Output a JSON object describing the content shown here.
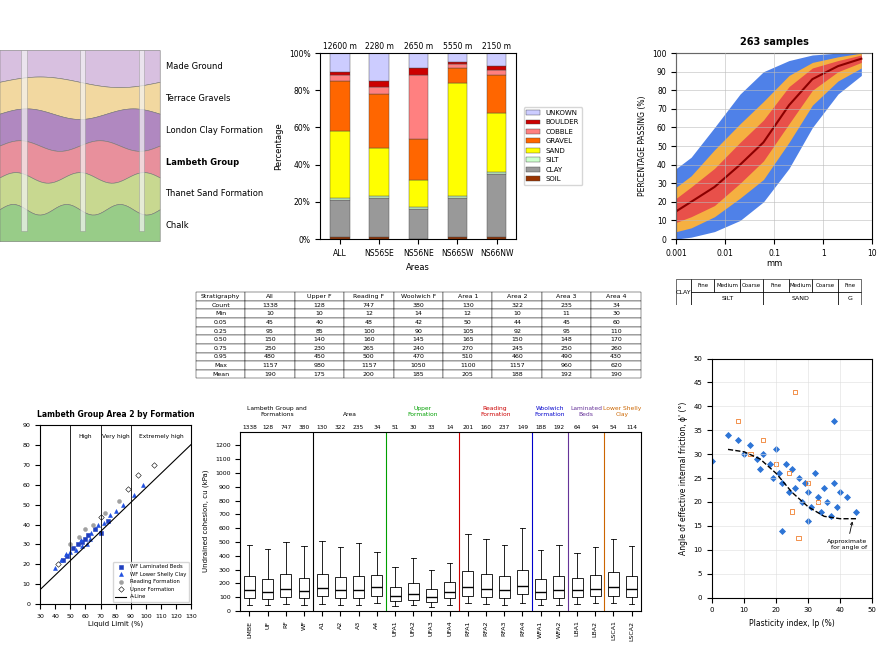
{
  "diagram": {
    "layers": [
      {
        "label": "Made Ground",
        "color": "#d8c0e0",
        "weight": "normal"
      },
      {
        "label": "Terrace Gravels",
        "color": "#f2d8a0",
        "weight": "normal"
      },
      {
        "label": "London Clay Formation",
        "color": "#b088c0",
        "weight": "normal"
      },
      {
        "label": "Lambeth Group",
        "color": "#e8909c",
        "weight": "bold"
      },
      {
        "label": "Thanet Sand Formation",
        "color": "#c8d890",
        "weight": "normal"
      },
      {
        "label": "Chalk",
        "color": "#98cc88",
        "weight": "normal"
      }
    ]
  },
  "chart_data": [
    {
      "type": "bar",
      "stacked": true,
      "x_label": "Areas",
      "y_label": "Percentage",
      "categories": [
        "ALL",
        "NS56SE",
        "NS56NE",
        "NS66SW",
        "NS66NW"
      ],
      "lengths": [
        "12600 m",
        "2280 m",
        "2650 m",
        "5550 m",
        "2150 m"
      ],
      "ylim": [
        0,
        100
      ],
      "yticks": [
        {
          "value": 0,
          "label": "0%"
        },
        {
          "value": 20,
          "label": "20%"
        },
        {
          "value": 40,
          "label": "40%"
        },
        {
          "value": 60,
          "label": "60%"
        },
        {
          "value": 80,
          "label": "80%"
        },
        {
          "value": 100,
          "label": "100%"
        }
      ],
      "legend": "center left",
      "series": [
        {
          "name": "SOIL",
          "color": "#993300",
          "values": [
            1,
            1,
            0,
            1,
            1
          ]
        },
        {
          "name": "CLAY",
          "color": "#999999",
          "values": [
            20,
            21,
            16,
            21,
            34
          ]
        },
        {
          "name": "SILT",
          "color": "#ccffcc",
          "values": [
            1,
            1,
            1,
            1,
            1
          ]
        },
        {
          "name": "SAND",
          "color": "#ffff00",
          "values": [
            36,
            26,
            15,
            61,
            32
          ]
        },
        {
          "name": "GRAVEL",
          "color": "#ff6600",
          "values": [
            27,
            29,
            22,
            8,
            20
          ]
        },
        {
          "name": "COBBLE",
          "color": "#ff8080",
          "values": [
            3,
            4,
            34,
            2,
            3
          ]
        },
        {
          "name": "BOULDER",
          "color": "#cc0000",
          "values": [
            2,
            3,
            4,
            1,
            2
          ]
        },
        {
          "name": "UNKOWN",
          "color": "#ccccff",
          "values": [
            10,
            15,
            8,
            5,
            7
          ]
        }
      ]
    },
    {
      "type": "line",
      "title": "263 samples",
      "x_label": "mm",
      "y_label": "PERCENTAGE PASSING (%)",
      "log": "x",
      "grid": true,
      "x": [
        0.001,
        0.002,
        0.006,
        0.02,
        0.06,
        0.2,
        0.6,
        2,
        6
      ],
      "xlim": [
        0.001,
        10
      ],
      "xticks": [
        0.001,
        0.01,
        0.1,
        1,
        10
      ],
      "ylim": [
        0,
        100
      ],
      "yticks": [
        0,
        10,
        20,
        30,
        40,
        50,
        60,
        70,
        80,
        90,
        100
      ],
      "bands": [
        {
          "color": "#4f81e8",
          "lower": [
            0,
            1,
            4,
            10,
            20,
            38,
            60,
            78,
            88
          ],
          "upper": [
            38,
            44,
            60,
            78,
            90,
            96,
            99,
            100,
            100
          ]
        },
        {
          "color": "#f5b041",
          "lower": [
            4,
            6,
            12,
            22,
            32,
            52,
            72,
            85,
            92
          ],
          "upper": [
            28,
            34,
            48,
            62,
            74,
            88,
            95,
            98,
            100
          ]
        },
        {
          "color": "#e8504a",
          "lower": [
            9,
            12,
            18,
            30,
            42,
            62,
            80,
            90,
            95
          ],
          "upper": [
            22,
            28,
            38,
            52,
            64,
            82,
            92,
            96,
            99
          ]
        }
      ],
      "series": [
        {
          "color": "#8b0000",
          "values": [
            15,
            20,
            28,
            40,
            52,
            72,
            86,
            93,
            97
          ]
        }
      ],
      "classes": [
        {
          "name": "CLAY",
          "bounds": [
            0.001,
            0.002
          ],
          "parts": []
        },
        {
          "name": "SILT",
          "bounds": [
            0.002,
            0.006,
            0.02,
            0.06
          ],
          "parts": [
            "Fine",
            "Medium",
            "Coarse"
          ]
        },
        {
          "name": "SAND",
          "bounds": [
            0.06,
            0.2,
            0.6,
            2
          ],
          "parts": [
            "Fine",
            "Medium",
            "Coarse"
          ]
        },
        {
          "name": "G",
          "bounds": [
            2,
            6
          ],
          "parts": [
            "Fine"
          ]
        }
      ]
    },
    {
      "type": "scatter",
      "title": "Lambeth Group Area 2 by Formation",
      "x_label": "Liquid Limit (%)",
      "xlim": [
        30,
        130
      ],
      "xticks": [
        30,
        40,
        50,
        60,
        70,
        80,
        90,
        100,
        110,
        120,
        130
      ],
      "ylim": [
        0,
        90
      ],
      "yticks": [
        0,
        10,
        20,
        30,
        40,
        50,
        60,
        70,
        80,
        90
      ],
      "legend": "lower right",
      "zones": [
        {
          "label": "High",
          "from": 50,
          "to": 70
        },
        {
          "label": "Very high",
          "from": 70,
          "to": 90
        },
        {
          "label": "Extremely high",
          "from": 90,
          "to": 130
        }
      ],
      "series": [
        {
          "name": "WF Laminated Beds",
          "type": "scatter",
          "marker": "square",
          "color": "#1f3fbf",
          "x": [
            45,
            52,
            58,
            62,
            66,
            70,
            55,
            48,
            75,
            60
          ],
          "values": [
            22,
            28,
            31,
            35,
            38,
            36,
            30,
            24,
            42,
            33
          ]
        },
        {
          "name": "WF Lower Shelly Clay",
          "type": "scatter",
          "marker": "triangle",
          "color": "#2050e0",
          "x": [
            40,
            44,
            50,
            54,
            57,
            61,
            64,
            68,
            72,
            76,
            80,
            85,
            92,
            98,
            58,
            63,
            47
          ],
          "values": [
            18,
            22,
            26,
            27,
            32,
            30,
            36,
            40,
            41,
            45,
            47,
            50,
            55,
            60,
            29,
            33,
            25
          ]
        },
        {
          "name": "Reading Formation",
          "type": "scatter",
          "marker": "circle",
          "color": "#a0a0a0",
          "x": [
            50,
            56,
            65,
            73,
            82,
            60
          ],
          "values": [
            30,
            34,
            40,
            46,
            52,
            38
          ]
        },
        {
          "name": "Upnor Formation",
          "type": "scatter",
          "marker": "diamond",
          "color": "#ffffff",
          "x": [
            42,
            70,
            88,
            95,
            105
          ],
          "values": [
            20,
            44,
            58,
            65,
            70
          ]
        },
        {
          "name": "A-Line",
          "type": "line",
          "color": "#000000",
          "line_style": "solid",
          "x": [
            20,
            130
          ],
          "values": [
            0,
            80.3
          ]
        }
      ]
    },
    {
      "type": "box",
      "y_label": "Undrained cohesion, cu (kPa)",
      "ylim": [
        0,
        1300
      ],
      "yticks": [
        0,
        100,
        200,
        300,
        400,
        500,
        600,
        700,
        800,
        900,
        1000,
        1100,
        1200
      ],
      "groups": [
        {
          "label": "Lambeth Group and\nFormations",
          "color": "#000000",
          "categories": [
            "LMBE",
            "UF",
            "RF",
            "WF"
          ],
          "n": [
            1338,
            128,
            747,
            380
          ],
          "boxes": [
            [
              45,
              95,
              150,
              250,
              480
            ],
            [
              40,
              85,
              140,
              230,
              450
            ],
            [
              48,
              100,
              160,
              265,
              500
            ],
            [
              42,
              90,
              145,
              240,
              470
            ]
          ]
        },
        {
          "label": "Area",
          "color": "#000000",
          "categories": [
            "A1",
            "A2",
            "A3",
            "A4"
          ],
          "n": [
            130,
            322,
            235,
            34
          ],
          "boxes": [
            [
              50,
              105,
              165,
              270,
              510
            ],
            [
              44,
              92,
              150,
              245,
              460
            ],
            [
              45,
              95,
              148,
              250,
              490
            ],
            [
              60,
              110,
              170,
              260,
              430
            ]
          ]
        },
        {
          "label": "Upper\nFormation",
          "color": "#00a000",
          "categories": [
            "UFA1",
            "UFA2",
            "UFA3",
            "UFA4"
          ],
          "n": [
            51,
            30,
            33,
            14
          ],
          "boxes": [
            [
              35,
              70,
              110,
              170,
              320
            ],
            [
              40,
              80,
              125,
              200,
              380
            ],
            [
              30,
              65,
              100,
              160,
              300
            ],
            [
              45,
              90,
              140,
              210,
              350
            ]
          ]
        },
        {
          "label": "Reading\nFormation",
          "color": "#cc0000",
          "categories": [
            "RFA1",
            "RFA2",
            "RFA3",
            "RFA4"
          ],
          "n": [
            201,
            160,
            237,
            149
          ],
          "boxes": [
            [
              55,
              110,
              175,
              290,
              560
            ],
            [
              50,
              100,
              160,
              270,
              520
            ],
            [
              45,
              95,
              150,
              255,
              480
            ],
            [
              60,
              120,
              180,
              300,
              600
            ]
          ]
        },
        {
          "label": "Woolwich\nFormation",
          "color": "#0000cc",
          "categories": [
            "WFA1",
            "WFA2"
          ],
          "n": [
            188,
            192
          ],
          "boxes": [
            [
              40,
              85,
              140,
              230,
              440
            ],
            [
              45,
              95,
              150,
              250,
              480
            ]
          ]
        },
        {
          "label": "Laminated\nBeds",
          "color": "#663399",
          "categories": [
            "LBA1",
            "LBA2"
          ],
          "n": [
            64,
            94
          ],
          "boxes": [
            [
              50,
              100,
              155,
              240,
              420
            ],
            [
              55,
              105,
              160,
              260,
              460
            ]
          ]
        },
        {
          "label": "Lower Shelly\nClay",
          "color": "#cc6600",
          "categories": [
            "LSCA1",
            "LSCA2"
          ],
          "n": [
            54,
            114
          ],
          "boxes": [
            [
              60,
              110,
              170,
              280,
              520
            ],
            [
              50,
              100,
              160,
              250,
              470
            ]
          ]
        }
      ]
    },
    {
      "type": "scatter",
      "x_label": "Plasticity index, Ip (%)",
      "y_label": "Angle of effective internal friction, ϕ' (°)",
      "xlim": [
        0,
        50
      ],
      "xticks": [
        0,
        10,
        20,
        30,
        40,
        50
      ],
      "ylim": [
        0,
        50
      ],
      "yticks": [
        0,
        5,
        10,
        15,
        20,
        25,
        30,
        35,
        40,
        45,
        50
      ],
      "annotation": {
        "text": "Approximate\nfor angle of",
        "point": [
          44,
          16.5
        ]
      },
      "series": [
        {
          "type": "scatter",
          "marker": "diamond",
          "color": "#2e75d6",
          "x": [
            0,
            5,
            8,
            10,
            12,
            14,
            15,
            16,
            18,
            19,
            20,
            21,
            22,
            23,
            24,
            25,
            26,
            27,
            28,
            29,
            30,
            31,
            32,
            33,
            34,
            35,
            36,
            37,
            38,
            39,
            40,
            42,
            38,
            22,
            30,
            45
          ],
          "values": [
            28.5,
            34,
            33,
            30,
            32,
            29,
            27,
            30,
            28,
            25,
            31,
            26,
            24,
            28,
            22,
            27,
            23,
            25,
            20,
            24,
            22,
            19,
            26,
            21,
            18,
            23,
            20,
            17,
            24,
            19,
            22,
            21,
            37,
            14,
            16,
            18
          ]
        },
        {
          "type": "scatter",
          "marker": "square",
          "color": "#f08030",
          "x": [
            8,
            12,
            16,
            20,
            24,
            26,
            27,
            30,
            33,
            25
          ],
          "values": [
            37,
            30,
            33,
            28,
            26,
            43,
            12.5,
            24,
            20,
            18
          ]
        },
        {
          "type": "line",
          "line_style": "dashed",
          "color": "#000000",
          "x": [
            5,
            10,
            15,
            20,
            25,
            30,
            35,
            40,
            45
          ],
          "values": [
            31,
            30.5,
            29,
            26,
            22,
            19,
            17,
            16.5,
            16.5
          ]
        }
      ]
    }
  ],
  "table": {
    "header": [
      "Stratigraphy",
      "All",
      "Upper F",
      "Reading F",
      "Woolwich F",
      "Area 1",
      "Area 2",
      "Area 3",
      "Area 4"
    ],
    "rows": [
      [
        "Count",
        "1338",
        "128",
        "747",
        "380",
        "130",
        "322",
        "235",
        "34"
      ],
      [
        "Min",
        "10",
        "10",
        "12",
        "14",
        "12",
        "10",
        "11",
        "30"
      ],
      [
        "0.05",
        "45",
        "40",
        "48",
        "42",
        "50",
        "44",
        "45",
        "60"
      ],
      [
        "0.25",
        "95",
        "85",
        "100",
        "90",
        "105",
        "92",
        "95",
        "110"
      ],
      [
        "0.50",
        "150",
        "140",
        "160",
        "145",
        "165",
        "150",
        "148",
        "170"
      ],
      [
        "0.75",
        "250",
        "230",
        "265",
        "240",
        "270",
        "245",
        "250",
        "260"
      ],
      [
        "0.95",
        "480",
        "450",
        "500",
        "470",
        "510",
        "460",
        "490",
        "430"
      ],
      [
        "Max",
        "1157",
        "980",
        "1157",
        "1050",
        "1100",
        "1157",
        "960",
        "620"
      ],
      [
        "Mean",
        "190",
        "175",
        "200",
        "185",
        "205",
        "188",
        "192",
        "190"
      ]
    ]
  }
}
